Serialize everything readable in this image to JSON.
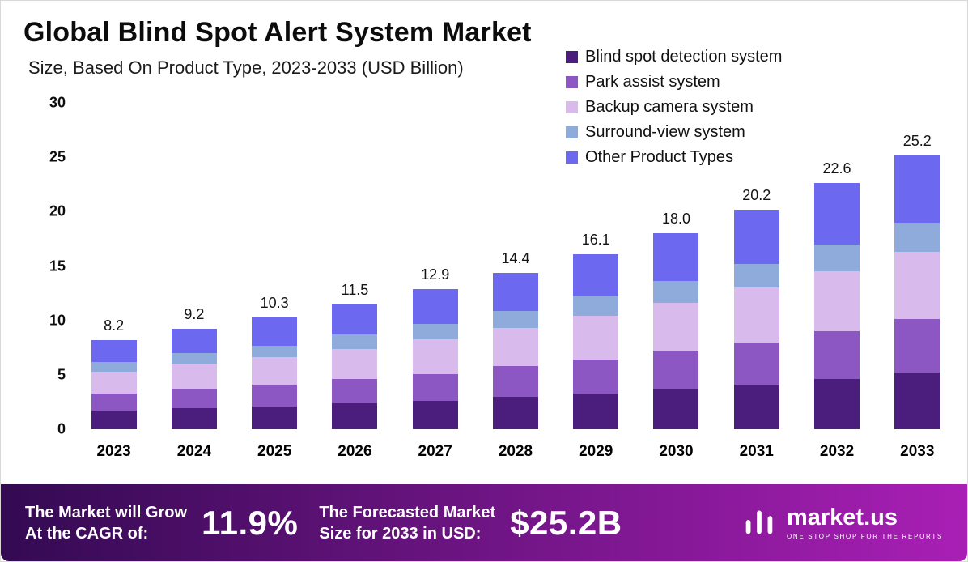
{
  "header": {
    "title": "Global Blind Spot Alert System Market",
    "subtitle": "Size, Based On Product Type, 2023-2033 (USD Billion)"
  },
  "chart_data": {
    "type": "bar",
    "stacked": true,
    "title": "Global Blind Spot Alert System Market",
    "subtitle": "Size, Based On Product Type, 2023-2033 (USD Billion)",
    "unit": "USD Billion",
    "categories": [
      "2023",
      "2024",
      "2025",
      "2026",
      "2027",
      "2028",
      "2029",
      "2030",
      "2031",
      "2032",
      "2033"
    ],
    "totals": [
      8.2,
      9.2,
      10.3,
      11.5,
      12.9,
      14.4,
      16.1,
      18.0,
      20.2,
      22.6,
      25.2
    ],
    "total_labels": [
      "8.2",
      "9.2",
      "10.3",
      "11.5",
      "12.9",
      "14.4",
      "16.1",
      "18.0",
      "20.2",
      "22.6",
      "25.2"
    ],
    "series": [
      {
        "name": "Blind spot detection system",
        "color": "#4b1e7d",
        "values": [
          1.7,
          1.9,
          2.1,
          2.4,
          2.6,
          3.0,
          3.3,
          3.7,
          4.1,
          4.6,
          5.2
        ]
      },
      {
        "name": "Park assist system",
        "color": "#8c57c2",
        "values": [
          1.6,
          1.8,
          2.0,
          2.2,
          2.5,
          2.8,
          3.1,
          3.5,
          3.9,
          4.4,
          4.9
        ]
      },
      {
        "name": "Backup camera system",
        "color": "#d9baed",
        "values": [
          2.0,
          2.3,
          2.5,
          2.8,
          3.2,
          3.5,
          4.0,
          4.4,
          5.0,
          5.5,
          6.2
        ]
      },
      {
        "name": "Surround-view system",
        "color": "#8fabdc",
        "values": [
          0.9,
          1.0,
          1.1,
          1.3,
          1.4,
          1.6,
          1.8,
          2.0,
          2.2,
          2.5,
          2.7
        ]
      },
      {
        "name": "Other Product Types",
        "color": "#6d68f0",
        "values": [
          2.0,
          2.2,
          2.6,
          2.8,
          3.2,
          3.5,
          3.9,
          4.4,
          5.0,
          5.6,
          6.2
        ]
      }
    ],
    "ylim": [
      0,
      30
    ],
    "yticks": [
      0,
      5,
      10,
      15,
      20,
      25,
      30
    ],
    "legend_position": "top-right",
    "grid": false
  },
  "footer": {
    "cagr_text_line1": "The Market will Grow",
    "cagr_text_line2": "At the CAGR of:",
    "cagr_value": "11.9%",
    "forecast_text_line1": "The Forecasted Market",
    "forecast_text_line2": "Size for 2033 in USD:",
    "forecast_value": "$25.2B",
    "brand": {
      "name": "market.us",
      "tagline": "ONE STOP SHOP FOR THE REPORTS"
    },
    "gradient_left": "#330a52",
    "gradient_right": "#a91fb5"
  }
}
